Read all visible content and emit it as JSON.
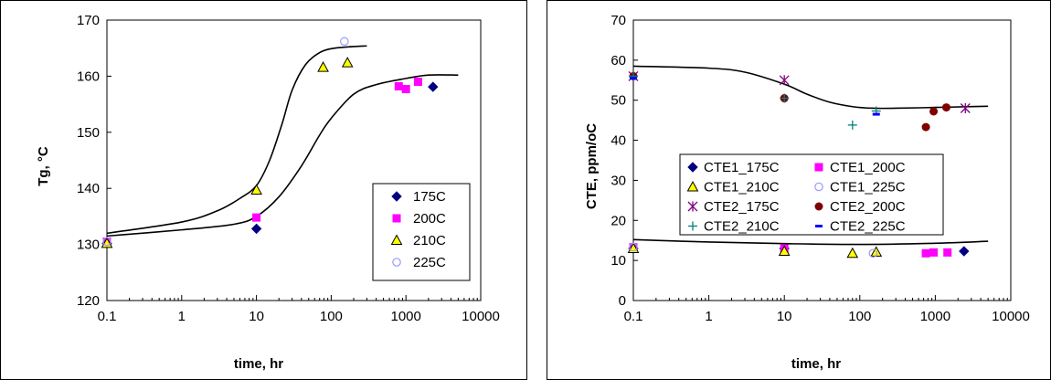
{
  "chart_data": [
    {
      "type": "scatter",
      "xscale": "log",
      "xlim": [
        0.1,
        10000
      ],
      "ylim": [
        120,
        170
      ],
      "xticks": [
        "0.1",
        "1",
        "10",
        "100",
        "1000",
        "10000"
      ],
      "yticks": [
        "120",
        "130",
        "140",
        "150",
        "160",
        "170"
      ],
      "xlabel": "time, hr",
      "ylabel": "Tg, °C",
      "legend_position": "bottom-right",
      "series": [
        {
          "name": "175C",
          "marker": "diamond",
          "color": "#000080",
          "x": [
            0.1,
            10,
            2300
          ],
          "y": [
            130.2,
            132.8,
            158.1
          ]
        },
        {
          "name": "200C",
          "marker": "square",
          "color": "#ff00ff",
          "x": [
            0.1,
            10,
            800,
            1000,
            1450
          ],
          "y": [
            130.5,
            134.8,
            158.2,
            157.7,
            159.0
          ]
        },
        {
          "name": "210C",
          "marker": "triangle",
          "color": "#ffff00",
          "x": [
            0.1,
            10,
            78,
            165
          ],
          "y": [
            130.2,
            139.7,
            161.6,
            162.4
          ]
        },
        {
          "name": "225C",
          "marker": "circle",
          "color": "#9999ff",
          "x": [
            0.1,
            150
          ],
          "y": [
            130.5,
            166.2
          ]
        }
      ],
      "curves": [
        {
          "x": [
            0.1,
            1,
            3,
            6,
            10,
            15,
            22,
            30,
            45,
            70,
            100,
            160,
            300
          ],
          "y": [
            132.0,
            134.0,
            136.0,
            138.2,
            140.5,
            145.0,
            151.5,
            157.5,
            162.0,
            164.2,
            164.9,
            165.2,
            165.4
          ]
        },
        {
          "x": [
            0.1,
            1,
            5,
            10,
            20,
            40,
            70,
            100,
            200,
            400,
            1000,
            2000,
            5000
          ],
          "y": [
            131.5,
            132.6,
            133.6,
            135.0,
            138.5,
            144.0,
            149.5,
            152.5,
            156.8,
            158.5,
            159.6,
            160.2,
            160.2
          ]
        }
      ]
    },
    {
      "type": "scatter",
      "xscale": "log",
      "xlim": [
        0.1,
        10000
      ],
      "ylim": [
        0,
        70
      ],
      "xticks": [
        "0.1",
        "1",
        "10",
        "100",
        "1000",
        "10000"
      ],
      "yticks": [
        "0",
        "10",
        "20",
        "30",
        "40",
        "50",
        "60",
        "70"
      ],
      "xlabel": "time, hr",
      "ylabel": "CTE, ppm/oC",
      "legend_position": "center",
      "series": [
        {
          "name": "CTE1_175C",
          "marker": "diamond",
          "color": "#000080",
          "x": [
            0.1,
            10,
            2400
          ],
          "y": [
            13.0,
            13.0,
            12.3
          ]
        },
        {
          "name": "CTE1_200C",
          "marker": "square",
          "color": "#ff00ff",
          "x": [
            0.1,
            10,
            750,
            950,
            1450
          ],
          "y": [
            13.3,
            13.0,
            11.8,
            12.0,
            12.0
          ]
        },
        {
          "name": "CTE1_210C",
          "marker": "triangle",
          "color": "#ffff00",
          "x": [
            0.1,
            10,
            80,
            165
          ],
          "y": [
            13.0,
            12.3,
            11.8,
            12.1
          ]
        },
        {
          "name": "CTE1_225C",
          "marker": "circle",
          "color": "#9999ff",
          "x": [
            0.1,
            150
          ],
          "y": [
            13.3,
            11.8
          ]
        },
        {
          "name": "CTE2_175C",
          "marker": "star",
          "color": "#800080",
          "x": [
            0.1,
            10,
            2500
          ],
          "y": [
            56.0,
            55.0,
            48.0
          ]
        },
        {
          "name": "CTE2_200C",
          "marker": "dot",
          "color": "#800000",
          "x": [
            0.1,
            10,
            750,
            950,
            1400
          ],
          "y": [
            56.0,
            50.5,
            43.3,
            47.2,
            48.2
          ]
        },
        {
          "name": "CTE2_210C",
          "marker": "plus",
          "color": "#008080",
          "x": [
            0.1,
            10,
            80,
            165
          ],
          "y": [
            56.0,
            50.5,
            43.8,
            47.3
          ]
        },
        {
          "name": "CTE2_225C",
          "marker": "dash",
          "color": "#0000ff",
          "x": [
            0.1,
            165
          ],
          "y": [
            55.5,
            46.5
          ]
        }
      ],
      "curves": [
        {
          "x": [
            0.1,
            1,
            3,
            10,
            20,
            40,
            80,
            150,
            300,
            1000,
            3000,
            5000
          ],
          "y": [
            58.5,
            58.0,
            57.0,
            54.0,
            51.5,
            49.5,
            48.4,
            48.0,
            48.0,
            48.2,
            48.4,
            48.5
          ]
        },
        {
          "x": [
            0.1,
            1,
            10,
            100,
            1000,
            5000
          ],
          "y": [
            15.2,
            14.6,
            14.2,
            14.0,
            14.3,
            14.8
          ]
        }
      ]
    }
  ]
}
